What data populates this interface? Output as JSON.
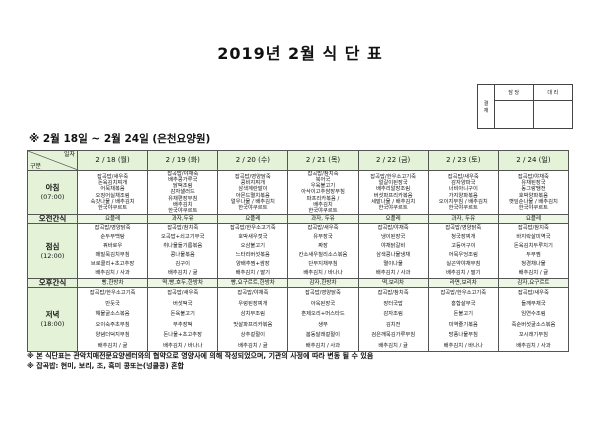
{
  "title": "2019년 2월 식 단 표",
  "approval": {
    "label_1": "결",
    "label_2": "재",
    "col_1": "담 당",
    "col_2": "대 리"
  },
  "subtitle": "※ 2월 18일 ~ 2월 24일 (은천요양원)",
  "table": {
    "corner_top": "일자",
    "corner_bottom": "구분",
    "days": [
      "2 / 18 (월)",
      "2 / 19 (화)",
      "2 / 20 (수)",
      "2 / 21 (목)",
      "2 / 22 (금)",
      "2 / 23 (토)",
      "2 / 24 (일)"
    ],
    "rows": [
      {
        "cls": "b",
        "label": "아침",
        "time": "(07:00)",
        "cells": [
          [
            "잡곡밥/새우죽",
            "돈육김치찌개",
            "어묵채볶음",
            "오징어실채조림",
            "숙갓나물 / 배추김치",
            "한국야쿠르트"
          ],
          [
            "잡곡밥/야채죽",
            "배추콩가루국",
            "닭떡조림",
            "감자샐러드",
            "유채편장무침",
            "배추김치",
            "한국야쿠르트"
          ],
          [
            "잡곡밥/영양닭죽",
            "콩비지찌개",
            "삼색계란말이",
            "아몬드멸치볶음",
            "얼우나물 / 배추김치",
            "한국야쿠르트"
          ],
          [
            "잡곡밥/참치죽",
            "북어국",
            "우육불고기",
            "아삭이고추쌈장무침",
            "파프리카볶음 /",
            "배추김치",
            "한국야쿠르트"
          ],
          [
            "잡곡밥/한우소고기죽",
            "얼갈이된장국",
            "배추리알장조림",
            "버섯파프리카볶음",
            "세발나물 / 배추김치",
            "한국야쿠르트"
          ],
          [
            "잡곡밥/새우죽",
            "감자양파국",
            "너비아니구이",
            "가지양파볶음",
            "오이지무침 / 배추김치",
            "한국야쿠르트"
          ],
          [
            "잡곡밥/야채죽",
            "유채된장국",
            "동그랑땡전",
            "호박양파볶음",
            "깻잎순나물 / 배추김치",
            "한국야쿠르트"
          ]
        ]
      },
      {
        "cls": "snack",
        "label": "오전간식",
        "time": "",
        "cells": [
          [
            "요플레"
          ],
          [
            "과자,두유"
          ],
          [
            "요플레"
          ],
          [
            "과자, 두유"
          ],
          [
            "요플레"
          ],
          [
            "과자, 두유"
          ],
          [
            "요플레"
          ]
        ]
      },
      {
        "cls": "l",
        "label": "점심",
        "time": "(12:00)",
        "cells": [
          [
            "잡곡밥/영양닭죽",
            "순두부백탕",
            "꿔바로우",
            "메밀묵김치무침",
            "브로콜리+초고추장",
            "배추김치 / 사과"
          ],
          [
            "잡곡밥/참치죽",
            "오곡밥+쇠고기무국",
            "취나물들기름볶음",
            "콩나물볶음",
            "김구이",
            "배추김치 / 귤"
          ],
          [
            "잡곡밥/한우소고기죽",
            "호박새우젓국",
            "오삼불고기",
            "느타리버섯볶음",
            "양배추찜+쌈장",
            "배추김치 / 딸기"
          ],
          [
            "잡곡밥/새우죽",
            "유부장국",
            "짜장",
            "칸소새우칠리소스볶음",
            "단무지채무침",
            "배추김치 / 바나나"
          ],
          [
            "잡곡밥/야채죽",
            "냉이된장국",
            "야채닭갈비",
            "삼색콩나물냉채",
            "멸이나물",
            "배추김치 / 사과"
          ],
          [
            "잡곡밥/영양닭죽",
            "청국장찌개",
            "고등어구이",
            "어묵우엉조림",
            "실곤약야채무침",
            "배추김치 / 딸기"
          ],
          [
            "잡곡밥/참치죽",
            "바지락살미역국",
            "돈육김치두루치기",
            "두부찜",
            "청경채나물",
            "배추김치 / 귤"
          ]
        ]
      },
      {
        "cls": "snack",
        "label": "오후간식",
        "time": "",
        "cells": [
          [
            "빵,한방차"
          ],
          [
            "떡,빵,호두,한방차"
          ],
          [
            "빵,요구르트,한방차"
          ],
          [
            "감자,한방차"
          ],
          [
            "떡,보리차"
          ],
          [
            "라면,보리차"
          ],
          [
            "감자,요구르트"
          ]
        ]
      },
      {
        "cls": "d",
        "label": "저녁",
        "time": "(18:00)",
        "cells": [
          [
            "잡곡밥/한우소고기죽",
            "만둣국",
            "해물굴소스볶음",
            "오이숙주초무침",
            "양념더덕지무침",
            "배추김치 / 귤"
          ],
          [
            "잡곡밥/새우죽",
            "버섯떡국",
            "돈육불고기",
            "부추장떡",
            "돈나물+초고추장",
            "배추김치 / 바나나"
          ],
          [
            "잡곡밥/야채죽",
            "우렁된장찌개",
            "삼치무조림",
            "맛살파프리카볶음",
            "상추겉절이",
            "배추김치 / 귤"
          ],
          [
            "잡곡밥/영양닭죽",
            "아욱된장국",
            "훈제오리+머스타드",
            "생무",
            "봄동달래겉절이",
            "배추김치 / 사과"
          ],
          [
            "잡곡밥/참치죽",
            "장터국밥",
            "감자조림",
            "김치전",
            "검은깨묵김가루무침",
            "배추김치 / 귤"
          ],
          [
            "잡곡밥/한우소고기죽",
            "홍합살무국",
            "돈불고기",
            "미역줄기볶음",
            "방풍나물무침",
            "배추김치 / 바나나"
          ],
          [
            "잡곡밥/새우죽",
            "들깨무채국",
            "임연수조림",
            "죽순버섯굴소스볶음",
            "꼬시래기무침",
            "배추김치 / 사과"
          ]
        ]
      }
    ]
  },
  "notes": [
    "※ 본 식단표는 관악치매전문요양센터와의 협약으로 영양사에 의해 작성되었으며, 기관의 사정에 따라 변동 될 수 있음",
    "※ 잡곡밥: 현미, 보리, 조, 흑미 콩또는(넝쿨콩) 혼합"
  ],
  "colors": {
    "header_bg": "#e4f2d8",
    "border": "#555555"
  }
}
